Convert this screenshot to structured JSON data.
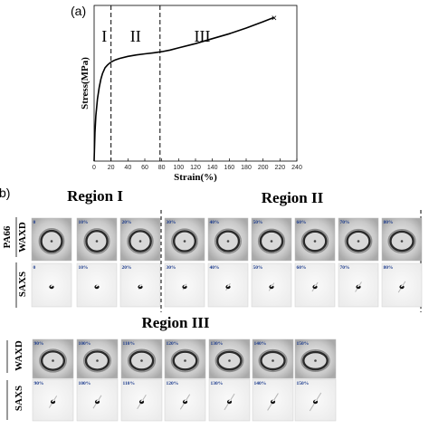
{
  "chart_data": {
    "type": "line",
    "panel_label": "(a)",
    "xlabel": "Strain(%)",
    "ylabel": "Stress(MPa)",
    "xlim": [
      0,
      240
    ],
    "xticks": [
      0,
      20,
      40,
      60,
      80,
      100,
      120,
      140,
      160,
      180,
      200,
      220,
      240
    ],
    "y_tick_labels_shown": false,
    "grid": false,
    "series": [
      {
        "x": [
          0,
          1,
          2,
          4,
          6,
          8,
          10,
          13,
          16,
          20,
          25,
          30,
          40,
          50,
          60,
          70,
          80,
          90,
          100,
          120,
          140,
          160,
          180,
          200,
          213
        ],
        "y": [
          0,
          20,
          32,
          44,
          52,
          58,
          62,
          66,
          68,
          70,
          71.5,
          72.5,
          74,
          75,
          75.8,
          76.5,
          77.3,
          78.5,
          80,
          83,
          86.5,
          90,
          94,
          98.5,
          101.5
        ]
      }
    ],
    "ylim": [
      0,
      110
    ],
    "end_marker": {
      "x": 213,
      "y": 101.5,
      "symbol": "×"
    },
    "region_boundaries": [
      20,
      78
    ],
    "region_labels": [
      "I",
      "II",
      "III"
    ]
  },
  "panel_b": {
    "label": "b)",
    "material": "PA66",
    "row_labels": {
      "waxd": "WAXD",
      "saxs": "SAXS"
    },
    "group1": {
      "regions": [
        "Region I",
        "Region II"
      ],
      "strains": [
        "0",
        "10%",
        "20%",
        "30%",
        "40%",
        "50%",
        "60%",
        "70%",
        "80%"
      ]
    },
    "group2": {
      "region": "Region III",
      "strains": [
        "90%",
        "100%",
        "110%",
        "120%",
        "130%",
        "140%",
        "150%"
      ]
    }
  }
}
